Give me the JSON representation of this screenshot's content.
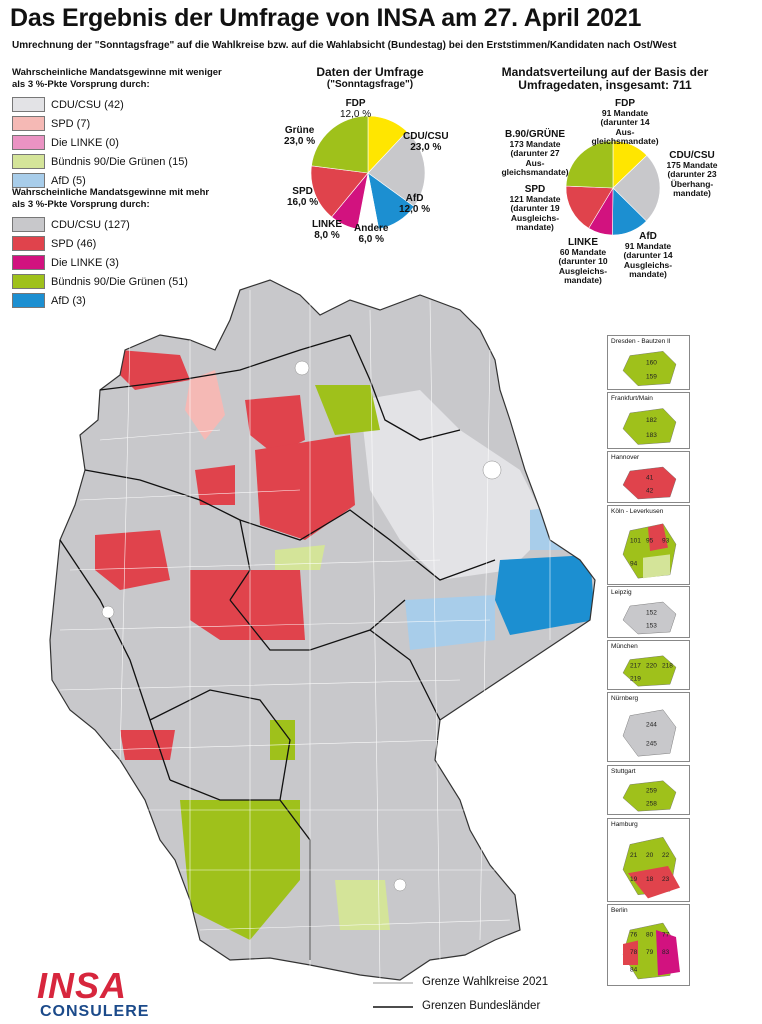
{
  "title": "Das Ergebnis der Umfrage von INSA am 27. April 2021",
  "subtitle": "Umrechnung der \"Sonntagsfrage\" auf die Wahlkreise bzw. auf die Wahlabsicht (Bundestag) bei den Erststimmen/Kandidaten nach Ost/West",
  "colors": {
    "cdu": "#c8c8cb",
    "cdu_light": "#e3e3e6",
    "spd": "#e0434c",
    "spd_light": "#f5b9b5",
    "linke": "#d2127f",
    "linke_light": "#ea93c3",
    "gruene": "#9fc11b",
    "gruene_light": "#d4e499",
    "afd": "#1c8fd1",
    "afd_light": "#a8cdea",
    "fdp": "#ffe600",
    "andere": "#ffffff"
  },
  "legend_weak": {
    "heading": "Wahrscheinliche Mandatsgewinne mit weniger als 3 %-Pkte Vorsprung durch:",
    "items": [
      {
        "label": "CDU/CSU (42)",
        "color": "#e3e3e6"
      },
      {
        "label": "SPD (7)",
        "color": "#f5b9b5"
      },
      {
        "label": "Die LINKE (0)",
        "color": "#ea93c3"
      },
      {
        "label": "Bündnis 90/Die Grünen (15)",
        "color": "#d4e499"
      },
      {
        "label": "AfD (5)",
        "color": "#a8cdea"
      }
    ]
  },
  "legend_strong": {
    "heading": "Wahrscheinliche Mandatsgewinne mit mehr als 3 %-Pkte Vorsprung durch:",
    "items": [
      {
        "label": "CDU/CSU (127)",
        "color": "#c8c8cb"
      },
      {
        "label": "SPD (46)",
        "color": "#e0434c"
      },
      {
        "label": "Die LINKE (3)",
        "color": "#d2127f"
      },
      {
        "label": "Bündnis 90/Die Grünen (51)",
        "color": "#9fc11b"
      },
      {
        "label": "AfD (3)",
        "color": "#1c8fd1"
      }
    ]
  },
  "pie_survey": {
    "title": "Daten der Umfrage",
    "subtitle": "(\"Sonntagsfrage\")",
    "slices": [
      {
        "name": "FDP",
        "value": 12.0,
        "color": "#ffe600",
        "label": "FDP",
        "pct": "12,0 %"
      },
      {
        "name": "CDU/CSU",
        "value": 23.0,
        "color": "#c8c8cb",
        "label": "CDU/CSU",
        "pct": "23,0 %"
      },
      {
        "name": "AfD",
        "value": 12.0,
        "color": "#1c8fd1",
        "label": "AfD",
        "pct": "12,0 %"
      },
      {
        "name": "Andere",
        "value": 6.0,
        "color": "#ffffff",
        "label": "Andere",
        "pct": "6,0 %"
      },
      {
        "name": "LINKE",
        "value": 8.0,
        "color": "#d2127f",
        "label": "LINKE",
        "pct": "8,0 %"
      },
      {
        "name": "SPD",
        "value": 16.0,
        "color": "#e0434c",
        "label": "SPD",
        "pct": "16,0 %"
      },
      {
        "name": "Grüne",
        "value": 23.0,
        "color": "#9fc11b",
        "label": "Grüne",
        "pct": "23,0 %"
      }
    ]
  },
  "pie_seats": {
    "title": "Mandatsverteilung auf der Basis der Umfragedaten, insgesamt: 711",
    "slices": [
      {
        "name": "FDP",
        "value": 91,
        "color": "#ffe600",
        "label": "FDP",
        "detail": "91 Mandate (darunter 14 Aus- gleichsmandate)"
      },
      {
        "name": "CDU/CSU",
        "value": 175,
        "color": "#c8c8cb",
        "label": "CDU/CSU",
        "detail": "175 Mandate (darunter 23 Überhang- mandate)"
      },
      {
        "name": "AfD",
        "value": 91,
        "color": "#1c8fd1",
        "label": "AfD",
        "detail": "91 Mandate (darunter 14 Ausgleichs- mandate)"
      },
      {
        "name": "LINKE",
        "value": 60,
        "color": "#d2127f",
        "label": "LINKE",
        "detail": "60 Mandate (darunter 10 Ausgleichs- mandate)"
      },
      {
        "name": "SPD",
        "value": 121,
        "color": "#e0434c",
        "label": "SPD",
        "detail": "121 Mandate (darunter 19 Ausgleichs- mandate)"
      },
      {
        "name": "B.90/GRÜNE",
        "value": 173,
        "color": "#9fc11b",
        "label": "B.90/GRÜNE",
        "detail": "173 Mandate (darunter 27 Aus- gleichsmandate)"
      }
    ]
  },
  "insets": [
    {
      "label": "Dresden - Bautzen II",
      "numbers": [
        "160",
        "159"
      ]
    },
    {
      "label": "Frankfurt/Main",
      "numbers": [
        "182",
        "183"
      ]
    },
    {
      "label": "Hannover",
      "numbers": [
        "41",
        "42"
      ]
    },
    {
      "label": "Köln - Leverkusen",
      "numbers": [
        "101",
        "95",
        "93",
        "94"
      ]
    },
    {
      "label": "Leipzig",
      "numbers": [
        "152",
        "153"
      ]
    },
    {
      "label": "München",
      "numbers": [
        "217",
        "220",
        "218",
        "219"
      ]
    },
    {
      "label": "Nürnberg",
      "numbers": [
        "244",
        "245"
      ]
    },
    {
      "label": "Stuttgart",
      "numbers": [
        "259",
        "258"
      ]
    },
    {
      "label": "Hamburg",
      "numbers": [
        "21",
        "20",
        "22",
        "19",
        "18",
        "23"
      ]
    },
    {
      "label": "Berlin",
      "numbers": [
        "76",
        "80",
        "77",
        "78",
        "79",
        "83",
        "84"
      ]
    }
  ],
  "map_legend": {
    "wahlkreise": "Grenze Wahlkreise 2021",
    "bundeslaender": "Grenzen Bundesländer"
  },
  "logo": {
    "top": "INSA",
    "bottom": "CONSULERE"
  }
}
